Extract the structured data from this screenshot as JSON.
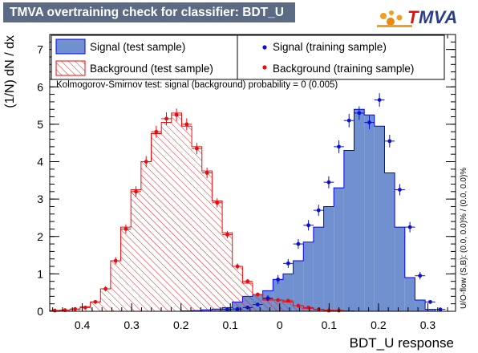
{
  "header": {
    "title": "TMVA overtraining check for classifier: BDT_U",
    "logo_text_first": "T",
    "logo_text_rest": "MVA",
    "logo_icon": "tmva-logo-icon"
  },
  "legend": {
    "entries": [
      {
        "label": "Signal (test sample)",
        "style": "filled-box",
        "color": "#7090d0"
      },
      {
        "label": "Background (test sample)",
        "style": "hatched-box",
        "color": "#e02020"
      },
      {
        "label": "Signal (training sample)",
        "style": "marker",
        "color": "#0a10d0"
      },
      {
        "label": "Background (training sample)",
        "style": "marker",
        "color": "#e01010"
      }
    ]
  },
  "ks_text": "Kolmogorov-Smirnov test: signal (background) probability =     0 (0.005)",
  "overflow_text": "U/O-flow (S,B): (0.0, 0.0)% / (0.0, 0.0)%",
  "chart_data": {
    "type": "histogram",
    "xlabel": "BDT_U response",
    "ylabel": "(1/N) dN / dx",
    "xlim": [
      -0.4659,
      0.3561
    ],
    "ylim": [
      0,
      7.4
    ],
    "xticks": [
      -0.4,
      -0.3,
      -0.2,
      -0.1,
      0,
      0.1,
      0.2,
      0.3
    ],
    "xtick_labels": [
      "0.4",
      "0.3",
      "0.2",
      "0.1",
      "0",
      "0.1",
      "0.2",
      "0.3"
    ],
    "yticks": [
      0,
      1,
      2,
      3,
      4,
      5,
      6,
      7
    ],
    "bin_edges": [
      -0.4659,
      -0.4453,
      -0.4248,
      -0.4042,
      -0.3837,
      -0.3631,
      -0.3426,
      -0.322,
      -0.3015,
      -0.2809,
      -0.2604,
      -0.2398,
      -0.2193,
      -0.1987,
      -0.1782,
      -0.1576,
      -0.1371,
      -0.1165,
      -0.096,
      -0.0754,
      -0.0549,
      -0.0343,
      -0.0138,
      0.0068,
      0.0273,
      0.0479,
      0.0684,
      0.089,
      0.1095,
      0.1301,
      0.1506,
      0.1712,
      0.1917,
      0.2123,
      0.2328,
      0.2534,
      0.2739,
      0.2945,
      0.315,
      0.3356,
      0.3561
    ],
    "series": [
      {
        "name": "Signal (test sample)",
        "kind": "hist-filled",
        "values": [
          0,
          0,
          0,
          0,
          0,
          0,
          0,
          0,
          0,
          0,
          0,
          0,
          0,
          0.01,
          0.02,
          0.04,
          0.06,
          0.1,
          0.25,
          0.4,
          0.45,
          0.55,
          0.85,
          1.0,
          1.35,
          1.85,
          2.25,
          2.8,
          3.3,
          4.3,
          5.4,
          5.25,
          4.95,
          3.7,
          2.25,
          0.9,
          0.3,
          0.05,
          0,
          0
        ]
      },
      {
        "name": "Background (test sample)",
        "kind": "hist-hatched",
        "values": [
          0.02,
          0.03,
          0.06,
          0.12,
          0.25,
          0.6,
          1.35,
          2.25,
          3.25,
          4.0,
          4.75,
          5.05,
          5.3,
          4.95,
          4.4,
          3.75,
          2.95,
          2.1,
          1.2,
          0.75,
          0.45,
          0.3,
          0.3,
          0.25,
          0.15,
          0.08,
          0.05,
          0.03,
          0.02,
          0.01,
          0,
          0,
          0,
          0,
          0,
          0,
          0,
          0,
          0,
          0
        ]
      },
      {
        "name": "Signal (training sample)",
        "kind": "points",
        "x": [
          -0.1063,
          -0.0857,
          -0.0651,
          -0.0446,
          -0.024,
          -0.0035,
          0.0171,
          0.0376,
          0.0582,
          0.0787,
          0.0993,
          0.1198,
          0.1404,
          0.1609,
          0.1815,
          0.202,
          0.2226,
          0.2431,
          0.2637,
          0.2842,
          0.3048,
          0.3253
        ],
        "y": [
          0.05,
          0.06,
          0.1,
          0.18,
          0.35,
          0.85,
          1.28,
          1.8,
          2.3,
          2.7,
          3.45,
          4.4,
          5.1,
          5.3,
          5.05,
          5.65,
          4.55,
          3.25,
          2.25,
          0.95,
          0.25,
          0.05
        ],
        "yerr": [
          0.02,
          0.02,
          0.03,
          0.05,
          0.08,
          0.12,
          0.12,
          0.13,
          0.14,
          0.15,
          0.16,
          0.17,
          0.18,
          0.18,
          0.18,
          0.18,
          0.17,
          0.15,
          0.14,
          0.1,
          0.05,
          0.02
        ]
      },
      {
        "name": "Background (training sample)",
        "kind": "points",
        "x": [
          -0.4556,
          -0.435,
          -0.4145,
          -0.3939,
          -0.3734,
          -0.3528,
          -0.3323,
          -0.3117,
          -0.2912,
          -0.2706,
          -0.2501,
          -0.2295,
          -0.209,
          -0.1884,
          -0.1679,
          -0.1473,
          -0.1268,
          -0.1062,
          -0.0857,
          -0.0651,
          -0.0446,
          -0.024,
          -0.0035,
          0.0171,
          0.0376,
          0.0582,
          0.0787,
          0.0993,
          0.1198
        ],
        "y": [
          0.02,
          0.03,
          0.06,
          0.1,
          0.25,
          0.6,
          1.35,
          2.2,
          3.2,
          4.0,
          4.8,
          5.15,
          5.25,
          5.0,
          4.35,
          3.7,
          2.9,
          2.05,
          1.2,
          0.8,
          0.45,
          0.33,
          0.3,
          0.28,
          0.15,
          0.1,
          0.05,
          0.02,
          0.02
        ],
        "yerr": [
          0.01,
          0.01,
          0.02,
          0.03,
          0.05,
          0.07,
          0.1,
          0.12,
          0.14,
          0.15,
          0.16,
          0.17,
          0.17,
          0.16,
          0.15,
          0.14,
          0.12,
          0.1,
          0.08,
          0.06,
          0.05,
          0.04,
          0.04,
          0.04,
          0.03,
          0.02,
          0.01,
          0.01,
          0.01
        ]
      }
    ],
    "colors": {
      "signal_fill": "#7090d0",
      "signal_line": "#0000ff",
      "background_line": "#ff0000",
      "signal_marker": "#0a10d0",
      "background_marker": "#e01010"
    }
  }
}
